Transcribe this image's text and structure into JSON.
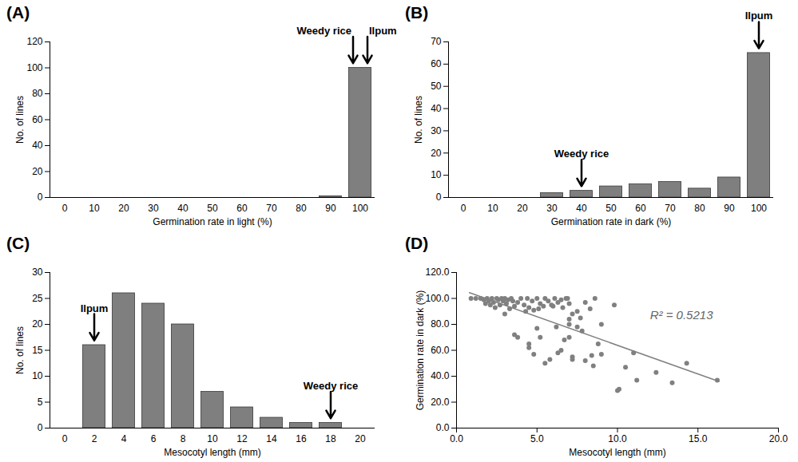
{
  "chart_data": [
    {
      "type": "bar",
      "title": "(A)",
      "x_label": "Germination rate in light (%)",
      "y_label": "No. of lines",
      "categories": [
        0,
        10,
        20,
        30,
        40,
        50,
        60,
        70,
        80,
        90,
        100
      ],
      "values": [
        0,
        0,
        0,
        0,
        0,
        0,
        0,
        0,
        0,
        1,
        100
      ],
      "color": "#7f7f7f",
      "ylim": [
        0,
        120
      ],
      "yticks": [
        0,
        20,
        40,
        60,
        80,
        100,
        120
      ],
      "grid": false,
      "annotations": [
        {
          "text": "Weedy rice",
          "category": 100
        },
        {
          "text": "Ilpum",
          "category": 100
        }
      ]
    },
    {
      "type": "bar",
      "title": "(B)",
      "x_label": "Germination rate in dark (%)",
      "y_label": "No. of lines",
      "categories": [
        0,
        10,
        20,
        30,
        40,
        50,
        60,
        70,
        80,
        90,
        100
      ],
      "values": [
        0,
        0,
        0,
        2,
        3,
        5,
        6,
        7,
        4,
        9,
        65
      ],
      "color": "#7f7f7f",
      "ylim": [
        0,
        70
      ],
      "yticks": [
        0,
        10,
        20,
        30,
        40,
        50,
        60,
        70
      ],
      "grid": false,
      "annotations": [
        {
          "text": "Weedy rice",
          "category": 40
        },
        {
          "text": "Ilpum",
          "category": 100
        }
      ]
    },
    {
      "type": "bar",
      "title": "(C)",
      "x_label": "Mesocotyl length (mm)",
      "y_label": "No. of lines",
      "categories": [
        0,
        2,
        4,
        6,
        8,
        10,
        12,
        14,
        16,
        18,
        20
      ],
      "values": [
        0,
        16,
        26,
        24,
        20,
        7,
        4,
        2,
        1,
        1,
        0
      ],
      "color": "#7f7f7f",
      "ylim": [
        0,
        30
      ],
      "yticks": [
        0,
        5,
        10,
        15,
        20,
        25,
        30
      ],
      "grid": false,
      "annotations": [
        {
          "text": "Ilpum",
          "category": 2
        },
        {
          "text": "Weedy rice",
          "category": 18
        }
      ]
    },
    {
      "type": "scatter",
      "title": "(D)",
      "x_label": "Mesocotyl length (mm)",
      "y_label": "Germination rate in dark (%)",
      "x": [
        0.9,
        1.2,
        1.5,
        1.7,
        1.9,
        2.0,
        2.2,
        2.3,
        2.5,
        2.6,
        2.8,
        2.9,
        3.0,
        3.1,
        3.2,
        3.4,
        3.5,
        2.1,
        2.4,
        1.8,
        3.0,
        3.3,
        2.7,
        4.0,
        4.2,
        4.4,
        4.5,
        4.7,
        4.8,
        5.0,
        5.2,
        5.4,
        5.5,
        5.7,
        5.9,
        6.1,
        6.3,
        6.5,
        6.6,
        6.8,
        7.0,
        4.3,
        5.1,
        6.0,
        6.9,
        3.8,
        3.6,
        7.5,
        8.0,
        8.3,
        8.6,
        9.8,
        7.2,
        7.7,
        7.0,
        3.6,
        3.8,
        4.5,
        4.5,
        4.8,
        5.2,
        5.5,
        5.8,
        6.2,
        6.5,
        6.7,
        7.0,
        7.2,
        7.2,
        7.8,
        8.0,
        8.5,
        8.8,
        9.0,
        10.0,
        10.1,
        10.5,
        11.0,
        11.2,
        12.4,
        13.4,
        14.3,
        16.2,
        7.0,
        7.5,
        6.3,
        5.0,
        8.4,
        9.0
      ],
      "y": [
        100,
        100,
        100,
        99,
        100,
        98,
        100,
        97,
        100,
        99,
        100,
        98,
        100,
        96,
        99,
        100,
        98,
        95,
        93,
        96,
        88,
        92,
        95,
        100,
        95,
        100,
        93,
        98,
        91,
        100,
        96,
        94,
        100,
        98,
        95,
        100,
        97,
        99,
        93,
        100,
        96,
        90,
        92,
        94,
        100,
        97,
        94,
        90,
        97,
        92,
        100,
        95,
        88,
        85,
        84,
        72,
        70,
        65,
        62,
        57,
        70,
        50,
        53,
        78,
        60,
        68,
        70,
        55,
        53,
        75,
        52,
        48,
        65,
        80,
        29,
        30,
        47,
        58,
        37,
        43,
        35,
        50,
        37,
        80,
        78,
        58,
        77,
        56,
        57
      ],
      "color": "#808080",
      "marker": "circle",
      "trendline": {
        "x": [
          0.8,
          16.3
        ],
        "y": [
          104.5,
          36.0
        ],
        "r2_label": "R² = 0.5213",
        "color": "#808080"
      },
      "xlim": [
        0,
        20
      ],
      "xticks": [
        {
          "value": 0,
          "label": "0.0"
        },
        {
          "value": 5,
          "label": "5.0"
        },
        {
          "value": 10,
          "label": "10.0"
        },
        {
          "value": 15,
          "label": "15.0"
        },
        {
          "value": 20,
          "label": "20.0"
        }
      ],
      "ylim": [
        0,
        120
      ],
      "yticks": [
        {
          "value": 0,
          "label": "0.0"
        },
        {
          "value": 20,
          "label": "20.0"
        },
        {
          "value": 40,
          "label": "40.0"
        },
        {
          "value": 60,
          "label": "60.0"
        },
        {
          "value": 80,
          "label": "80.0"
        },
        {
          "value": 100,
          "label": "100.0"
        },
        {
          "value": 120,
          "label": "120.0"
        }
      ],
      "grid": false
    }
  ]
}
